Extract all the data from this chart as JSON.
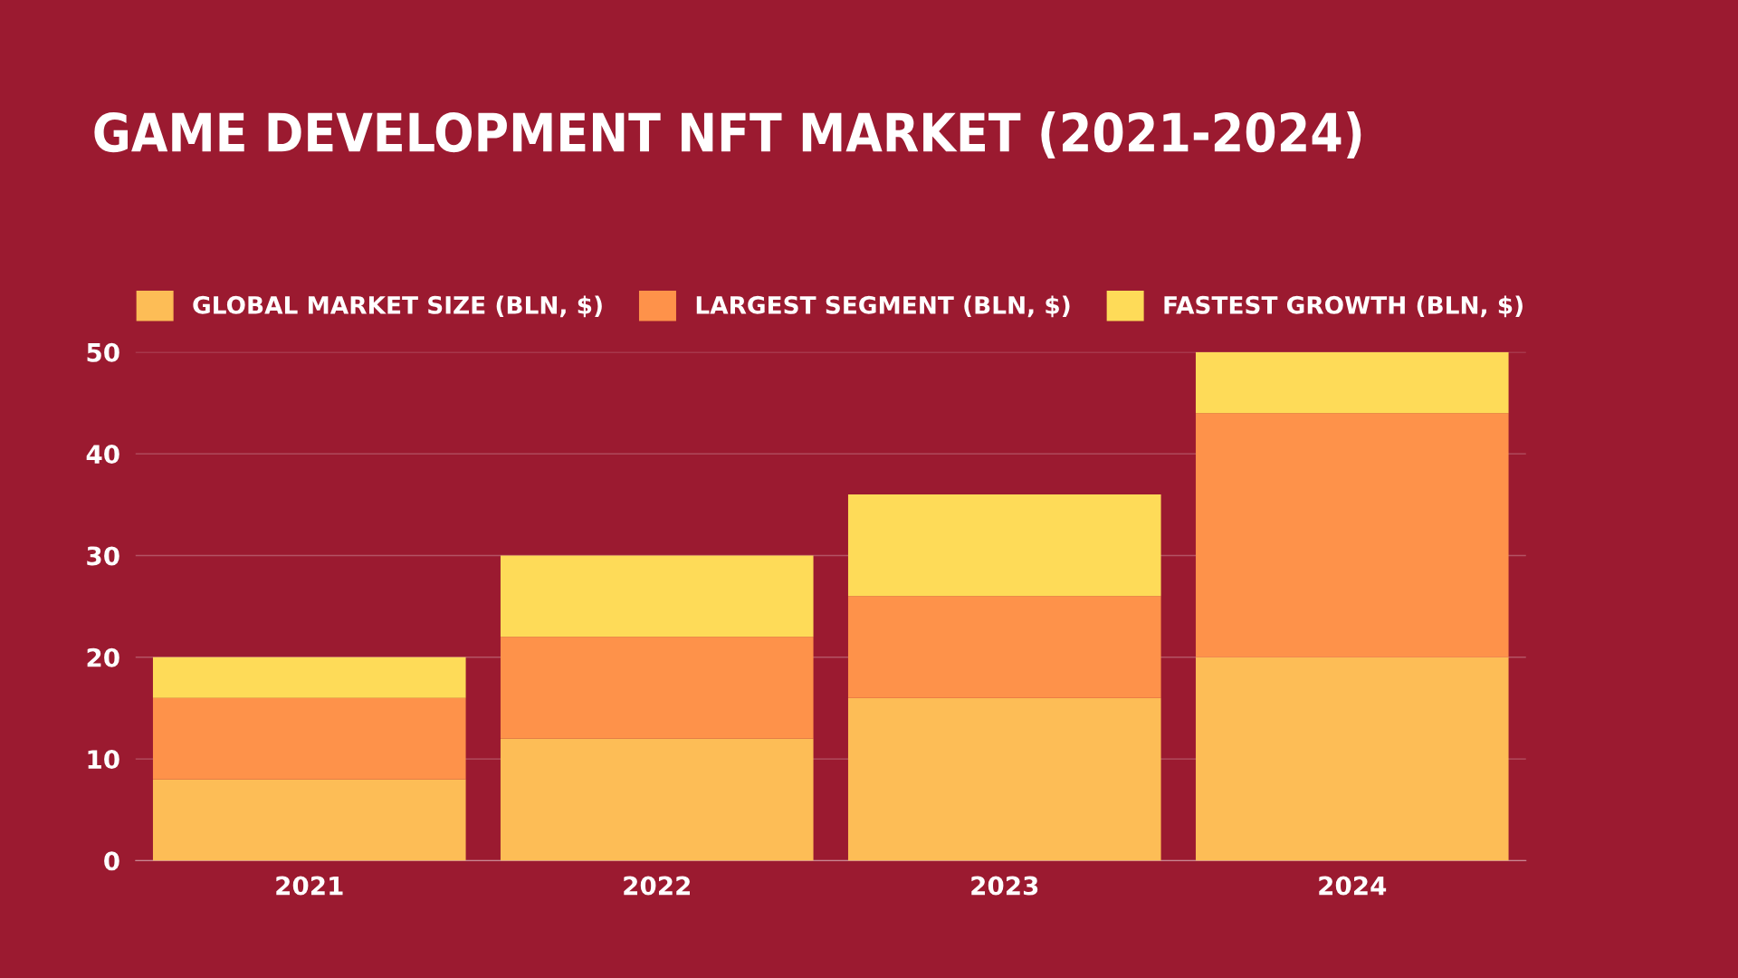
{
  "chart_data": {
    "type": "bar",
    "title": "GAME DEVELOPMENT NFT MARKET (2021-2024)",
    "categories": [
      "2021",
      "2022",
      "2023",
      "2024"
    ],
    "stacked": true,
    "series": [
      {
        "name": "GLOBAL MARKET SIZE (BLN, $)",
        "color": "#fdbd56",
        "values": [
          8,
          12,
          16,
          20
        ]
      },
      {
        "name": "LARGEST SEGMENT (BLN, $)",
        "color": "#fe924a",
        "values": [
          8,
          10,
          10,
          24
        ]
      },
      {
        "name": "FASTEST GROWTH (BLN, $)",
        "color": "#fedb58",
        "values": [
          4,
          8,
          10,
          6
        ]
      }
    ],
    "ylim": [
      0,
      50
    ],
    "yticks": [
      0,
      10,
      20,
      30,
      40,
      50
    ],
    "grid": "y",
    "legend": "top"
  }
}
